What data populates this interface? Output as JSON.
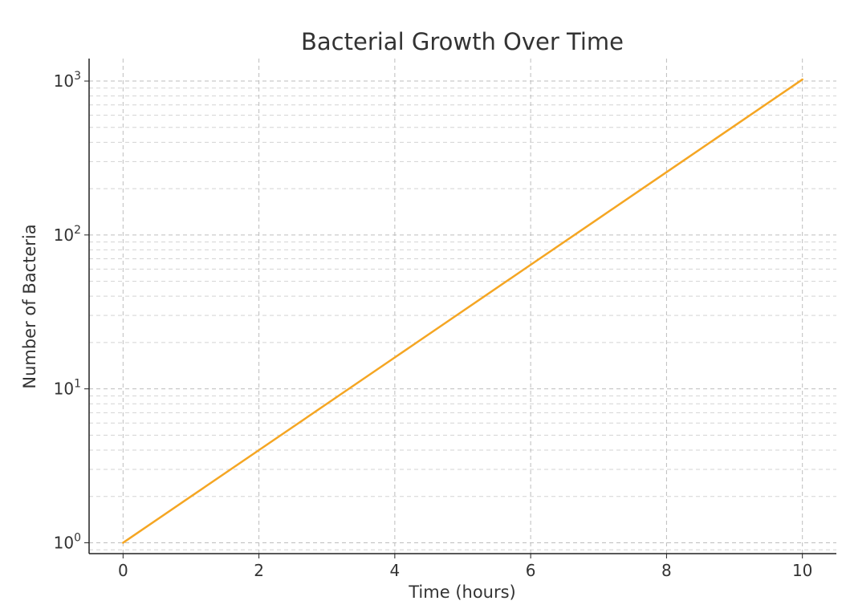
{
  "chart_data": {
    "type": "line",
    "title": "Bacterial Growth Over Time",
    "xlabel": "Time (hours)",
    "ylabel": "Number of Bacteria",
    "x_ticks": [
      0,
      2,
      4,
      6,
      8,
      10
    ],
    "y_ticks": [
      {
        "base": "10",
        "exp": "0",
        "value": 1
      },
      {
        "base": "10",
        "exp": "1",
        "value": 10
      },
      {
        "base": "10",
        "exp": "2",
        "value": 100
      },
      {
        "base": "10",
        "exp": "3",
        "value": 1000
      }
    ],
    "yscale": "log",
    "xlim": [
      -0.5,
      10.5
    ],
    "ylim": [
      0.85,
      1400
    ],
    "grid": true,
    "series": [
      {
        "color": "#f5a623",
        "x": [
          0,
          1,
          2,
          3,
          4,
          5,
          6,
          7,
          8,
          9,
          10
        ],
        "y": [
          1,
          2,
          4,
          8,
          16,
          32,
          64,
          128,
          256,
          512,
          1024
        ]
      }
    ]
  }
}
